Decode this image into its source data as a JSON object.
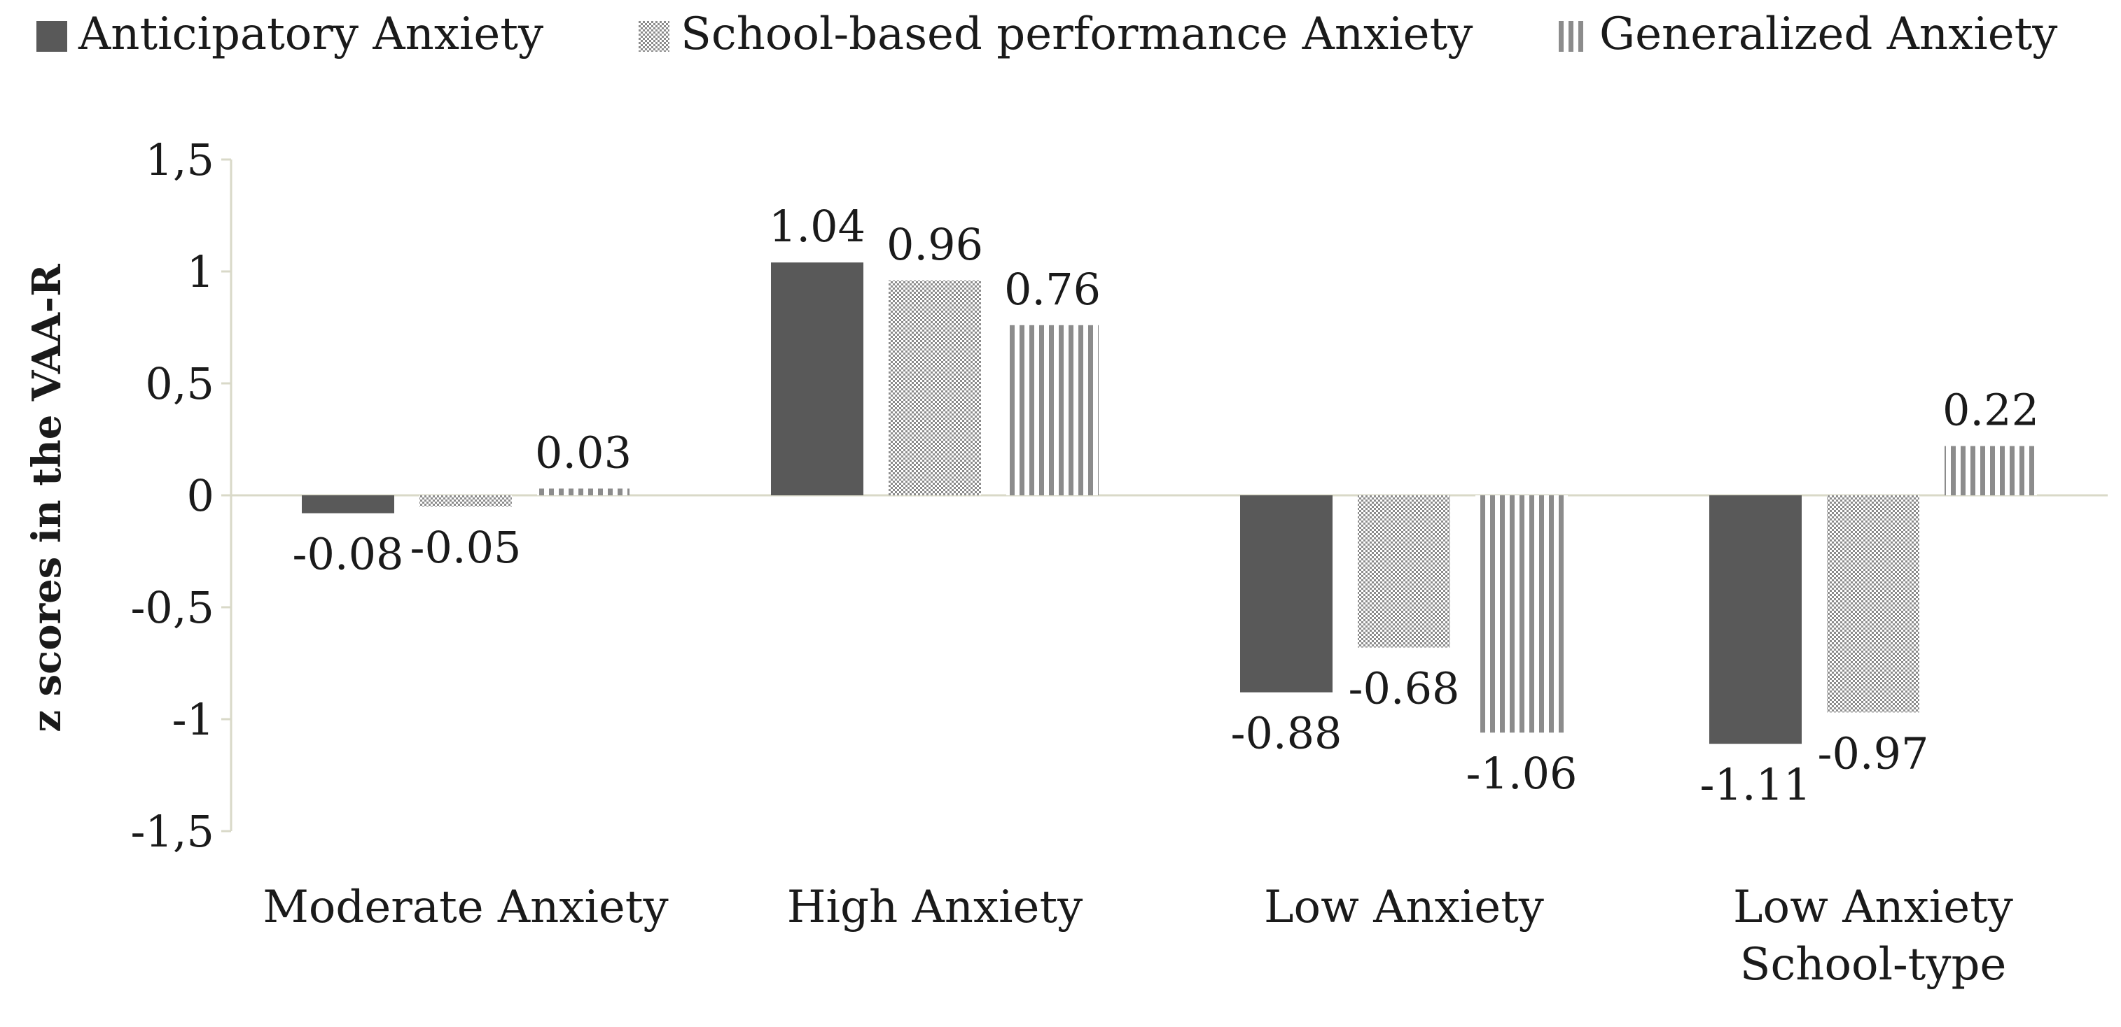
{
  "chart_data": {
    "type": "bar",
    "categories": [
      [
        "Moderate Anxiety"
      ],
      [
        "High Anxiety"
      ],
      [
        "Low Anxiety"
      ],
      [
        "Low Anxiety",
        "School-type"
      ]
    ],
    "series": [
      {
        "name": "Anticipatory Anxiety",
        "values": [
          -0.08,
          1.04,
          -0.88,
          -1.11
        ],
        "labels": [
          "-0.08",
          "1.04",
          "-0.88",
          "-1.11"
        ],
        "pattern": "solid"
      },
      {
        "name": "School-based performance Anxiety",
        "values": [
          -0.05,
          0.96,
          -0.68,
          -0.97
        ],
        "labels": [
          "-0.05",
          "0.96",
          "-0.68",
          "-0.97"
        ],
        "pattern": "dotted"
      },
      {
        "name": "Generalized Anxiety",
        "values": [
          0.03,
          0.76,
          -1.06,
          0.22
        ],
        "labels": [
          "0.03",
          "0.76",
          "-1.06",
          "0.22"
        ],
        "pattern": "vertical-stripes"
      }
    ],
    "yticks": [
      1.5,
      1,
      0.5,
      0,
      -0.5,
      -1,
      -1.5
    ],
    "ytick_labels": [
      "1,5",
      "1",
      "0,5",
      "0",
      "-0,5",
      "-1",
      "-1,5"
    ],
    "ylim": [
      -1.5,
      1.5
    ],
    "title": "",
    "xlabel": "",
    "ylabel": "z scores in the VAA-R",
    "legend_position": "top",
    "grid": false
  },
  "colors": {
    "solid": "#595959",
    "pattern_fg": "#8c8c8c",
    "pattern_bg": "#ffffff",
    "axis": "#d9d9c8",
    "text": "#1a1a1a"
  }
}
